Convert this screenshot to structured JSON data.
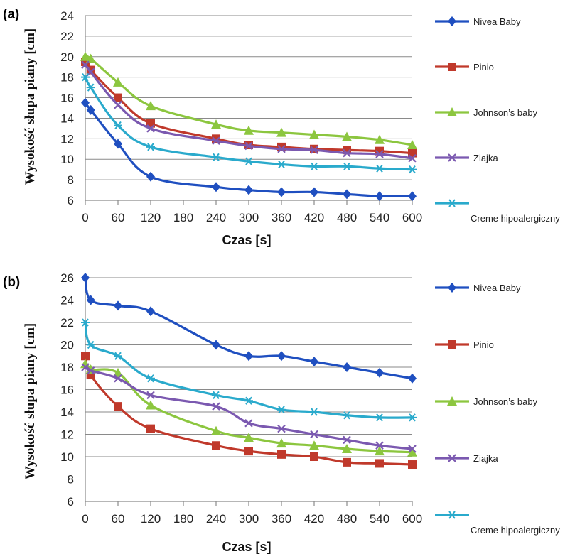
{
  "chart_data": [
    {
      "panel": "(a)",
      "type": "line",
      "xlabel": "Czas [s]",
      "ylabel": "Wysokość słupa piany [cm]",
      "xticks": [
        "0",
        "60",
        "120",
        "180",
        "240",
        "300",
        "360",
        "420",
        "480",
        "540",
        "600"
      ],
      "yticks": [
        "6",
        "8",
        "10",
        "12",
        "14",
        "16",
        "18",
        "20",
        "22",
        "24"
      ],
      "xlim": [
        0,
        600
      ],
      "ylim": [
        6,
        24
      ],
      "grid": "horizontal",
      "legend_position": "right",
      "series": [
        {
          "name": "Nivea Baby",
          "color": "#1f4fc0",
          "marker": "diamond",
          "x": [
            0,
            10,
            60,
            120,
            240,
            300,
            360,
            420,
            480,
            540,
            600
          ],
          "y": [
            15.5,
            14.8,
            11.5,
            8.3,
            7.3,
            7.0,
            6.8,
            6.8,
            6.6,
            6.4,
            6.4
          ]
        },
        {
          "name": "Pinio",
          "color": "#c0392b",
          "marker": "square",
          "x": [
            0,
            10,
            60,
            120,
            240,
            300,
            360,
            420,
            480,
            540,
            600
          ],
          "y": [
            19.5,
            18.7,
            16.0,
            13.5,
            12.0,
            11.4,
            11.2,
            11.0,
            10.9,
            10.8,
            10.6
          ]
        },
        {
          "name": "Johnson’s baby",
          "color": "#8cc63f",
          "marker": "triangle",
          "x": [
            0,
            10,
            60,
            120,
            240,
            300,
            360,
            420,
            480,
            540,
            600
          ],
          "y": [
            20.0,
            19.8,
            17.5,
            15.2,
            13.4,
            12.8,
            12.6,
            12.4,
            12.2,
            11.9,
            11.4
          ]
        },
        {
          "name": "Ziajka",
          "color": "#7b59b0",
          "marker": "x",
          "x": [
            0,
            10,
            60,
            120,
            240,
            300,
            360,
            420,
            480,
            540,
            600
          ],
          "y": [
            19.2,
            18.5,
            15.3,
            13.0,
            11.8,
            11.3,
            11.0,
            10.9,
            10.6,
            10.5,
            10.1
          ]
        },
        {
          "name": "Creme hipoalergiczny",
          "color": "#2aaacc",
          "marker": "asterisk",
          "x": [
            0,
            10,
            60,
            120,
            240,
            300,
            360,
            420,
            480,
            540,
            600
          ],
          "y": [
            18.0,
            17.0,
            13.3,
            11.2,
            10.2,
            9.8,
            9.5,
            9.3,
            9.3,
            9.1,
            9.0
          ]
        }
      ]
    },
    {
      "panel": "(b)",
      "type": "line",
      "xlabel": "Czas [s]",
      "ylabel": "Wysokość słupa piany [cm]",
      "xticks": [
        "0",
        "60",
        "120",
        "180",
        "240",
        "300",
        "360",
        "420",
        "480",
        "540",
        "600"
      ],
      "yticks": [
        "6",
        "8",
        "10",
        "12",
        "14",
        "16",
        "18",
        "20",
        "22",
        "24",
        "26"
      ],
      "xlim": [
        0,
        600
      ],
      "ylim": [
        6,
        26
      ],
      "grid": "horizontal",
      "legend_position": "right",
      "series": [
        {
          "name": "Nivea Baby",
          "color": "#1f4fc0",
          "marker": "diamond",
          "x": [
            0,
            10,
            60,
            120,
            240,
            300,
            360,
            420,
            480,
            540,
            600
          ],
          "y": [
            26.0,
            24.0,
            23.5,
            23.0,
            20.0,
            19.0,
            19.0,
            18.5,
            18.0,
            17.5,
            17.0
          ]
        },
        {
          "name": "Pinio",
          "color": "#c0392b",
          "marker": "square",
          "x": [
            0,
            10,
            60,
            120,
            240,
            300,
            360,
            420,
            480,
            540,
            600
          ],
          "y": [
            19.0,
            17.3,
            14.5,
            12.5,
            11.0,
            10.5,
            10.2,
            10.0,
            9.5,
            9.4,
            9.3
          ]
        },
        {
          "name": "Johnson’s baby",
          "color": "#8cc63f",
          "marker": "triangle",
          "x": [
            0,
            10,
            60,
            120,
            240,
            300,
            360,
            420,
            480,
            540,
            600
          ],
          "y": [
            18.3,
            17.8,
            17.5,
            14.6,
            12.3,
            11.7,
            11.2,
            11.0,
            10.7,
            10.5,
            10.4
          ]
        },
        {
          "name": "Ziajka",
          "color": "#7b59b0",
          "marker": "x",
          "x": [
            0,
            10,
            60,
            120,
            240,
            300,
            360,
            420,
            480,
            540,
            600
          ],
          "y": [
            18.0,
            17.7,
            17.0,
            15.5,
            14.5,
            13.0,
            12.5,
            12.0,
            11.5,
            11.0,
            10.7
          ]
        },
        {
          "name": "Creme hipoalergiczny",
          "color": "#2aaacc",
          "marker": "asterisk",
          "x": [
            0,
            10,
            60,
            120,
            240,
            300,
            360,
            420,
            480,
            540,
            600
          ],
          "y": [
            22.0,
            20.0,
            19.0,
            17.0,
            15.5,
            15.0,
            14.2,
            14.0,
            13.7,
            13.5,
            13.5
          ]
        }
      ]
    }
  ]
}
